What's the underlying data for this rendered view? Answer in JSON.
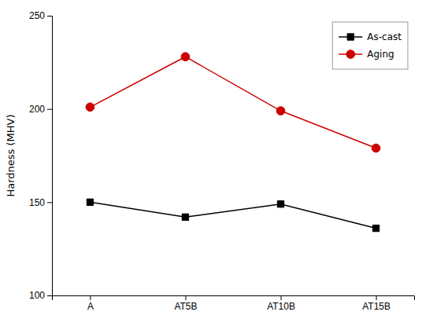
{
  "chart_data": {
    "type": "line",
    "categories": [
      "A",
      "AT5B",
      "AT10B",
      "AT15B"
    ],
    "series": [
      {
        "name": "As-cast",
        "color": "#000000",
        "marker": "square",
        "values": [
          150,
          142,
          149,
          136
        ]
      },
      {
        "name": "Aging",
        "color": "#cc0000",
        "marker": "circle",
        "values": [
          201,
          228,
          199,
          179
        ]
      }
    ],
    "ylabel": "Hardness (MHV)",
    "ylim": [
      100,
      250
    ],
    "yticks": [
      100,
      150,
      200,
      250
    ],
    "grid": false,
    "legend": "upper right"
  }
}
